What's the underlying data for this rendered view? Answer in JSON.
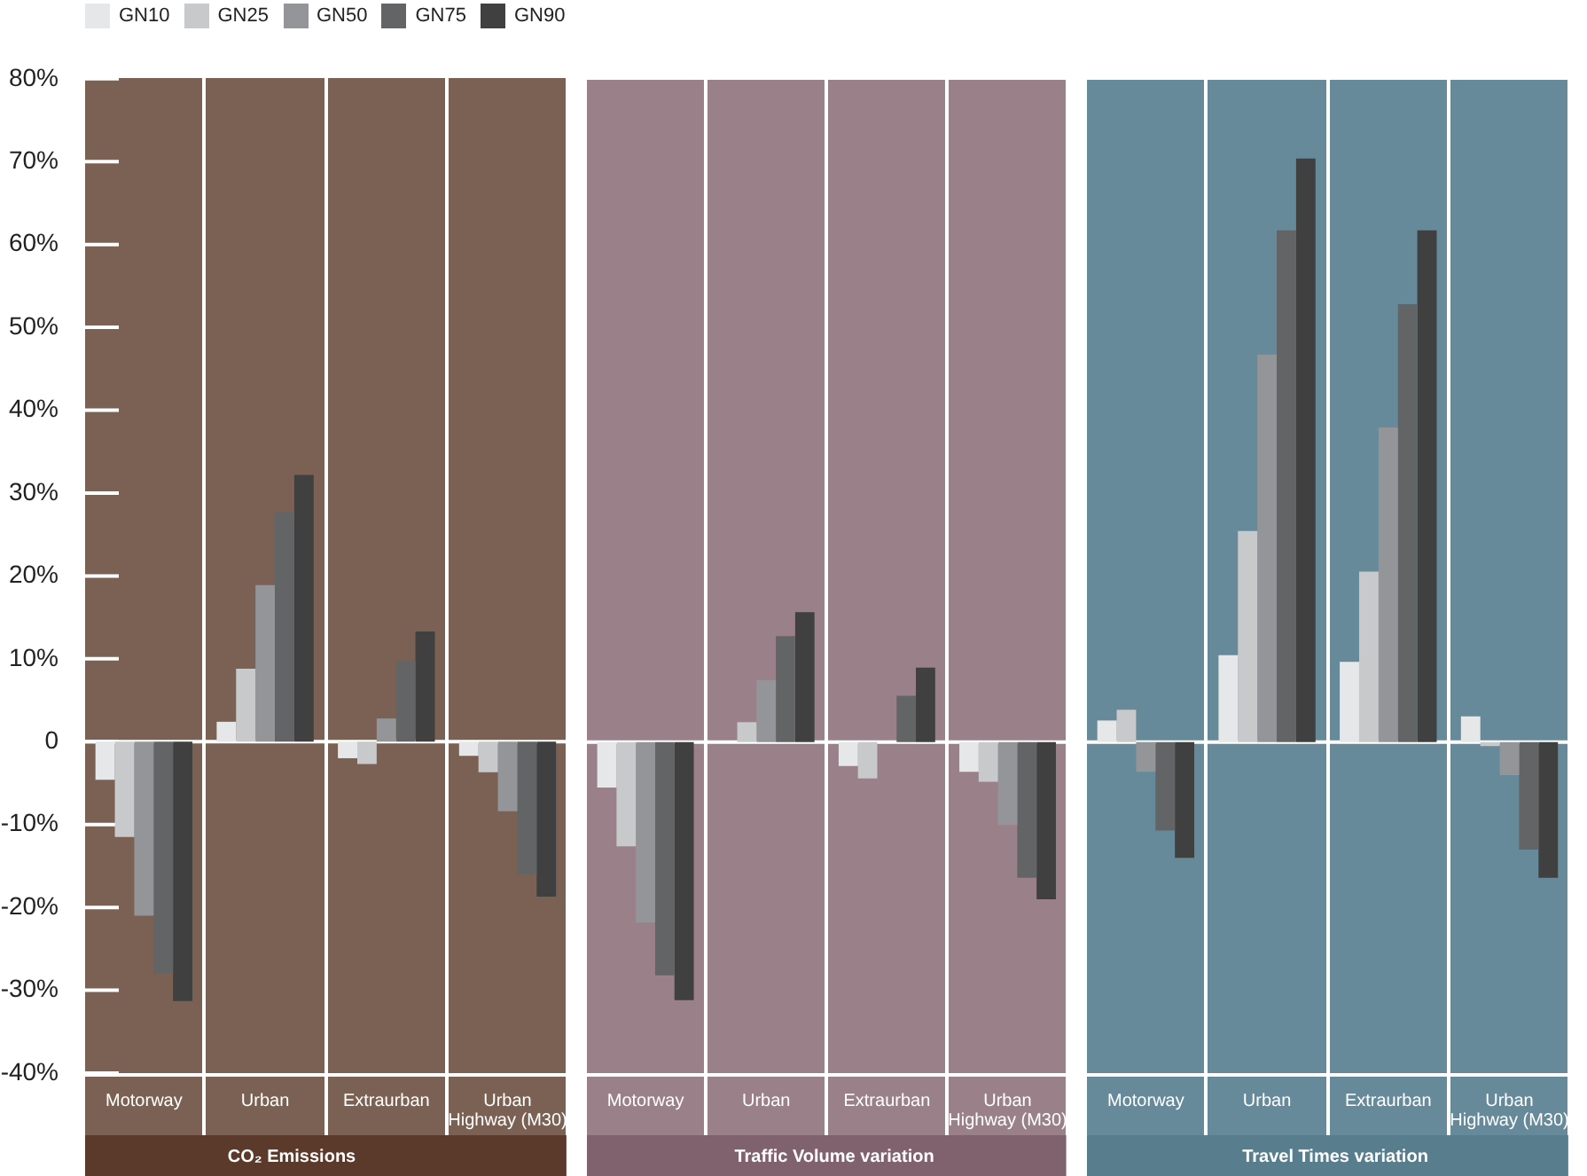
{
  "chart_data": [
    {
      "type": "bar",
      "title": "CO₂ Emissions",
      "categories": [
        "Motorway",
        "Urban",
        "Extraurban",
        "Urban Highway (M30)"
      ],
      "series": [
        {
          "name": "GN10",
          "color": "#e6e7e8",
          "values": [
            -4.6,
            2.4,
            -2.0,
            -1.7
          ]
        },
        {
          "name": "GN25",
          "color": "#c8c9ca",
          "values": [
            -11.5,
            8.8,
            -2.7,
            -3.7
          ]
        },
        {
          "name": "GN50",
          "color": "#939598",
          "values": [
            -21.0,
            18.9,
            2.8,
            -8.4
          ]
        },
        {
          "name": "GN75",
          "color": "#636466",
          "values": [
            -28.0,
            27.7,
            9.7,
            -16.0
          ]
        },
        {
          "name": "GN90",
          "color": "#404040",
          "values": [
            -31.3,
            32.2,
            13.3,
            -18.7
          ]
        }
      ],
      "ylim": [
        -40,
        80
      ],
      "yticks": [
        {
          "value": -40,
          "label": "-40%"
        },
        {
          "value": -30,
          "label": "-30%"
        },
        {
          "value": -20,
          "label": "-20%"
        },
        {
          "value": -10,
          "label": "-10%"
        },
        0,
        {
          "value": 10,
          "label": "10%"
        },
        {
          "value": 20,
          "label": "20%"
        },
        {
          "value": 30,
          "label": "30%"
        },
        {
          "value": 40,
          "label": "40%"
        },
        {
          "value": 50,
          "label": "50%"
        },
        {
          "value": 60,
          "label": "60%"
        },
        {
          "value": 70,
          "label": "70%"
        },
        {
          "value": 80,
          "label": "80%"
        }
      ],
      "legend": "top left"
    },
    {
      "type": "bar",
      "title": "Traffic Volume variation",
      "categories": [
        "Motorway",
        "Urban",
        "Extraurban",
        "Urban Highway (M30)"
      ],
      "series": [
        {
          "color": "#e6e7e8",
          "values": [
            -5.5,
            0,
            -2.9,
            -3.6
          ]
        },
        {
          "color": "#c8c9ca",
          "values": [
            -12.6,
            2.4,
            -4.4,
            -4.8
          ]
        },
        {
          "color": "#939598",
          "values": [
            -21.8,
            7.5,
            0,
            -10.0
          ]
        },
        {
          "color": "#636466",
          "values": [
            -28.2,
            12.8,
            5.6,
            -16.4
          ]
        },
        {
          "color": "#404040",
          "values": [
            -31.2,
            15.7,
            9.0,
            -19.0
          ]
        }
      ],
      "ylim": [
        -40,
        80
      ],
      "tick_labels": "x"
    },
    {
      "type": "bar",
      "title": "Travel Times variation",
      "categories": [
        "Motorway",
        "Urban",
        "Extraurban",
        "Urban Highway (M30)"
      ],
      "series": [
        {
          "color": "#e6e7e8",
          "values": [
            2.6,
            10.5,
            9.7,
            3.1
          ]
        },
        {
          "color": "#c8c9ca",
          "values": [
            3.9,
            25.5,
            20.6,
            -0.5
          ]
        },
        {
          "color": "#939598",
          "values": [
            -3.6,
            46.8,
            38.0,
            -4.0
          ]
        },
        {
          "color": "#636466",
          "values": [
            -10.7,
            61.8,
            52.9,
            -13.0
          ]
        },
        {
          "color": "#404040",
          "values": [
            -14.0,
            70.5,
            61.8,
            -16.4
          ]
        }
      ],
      "ylim": [
        -40,
        80
      ],
      "tick_labels": "x"
    }
  ]
}
